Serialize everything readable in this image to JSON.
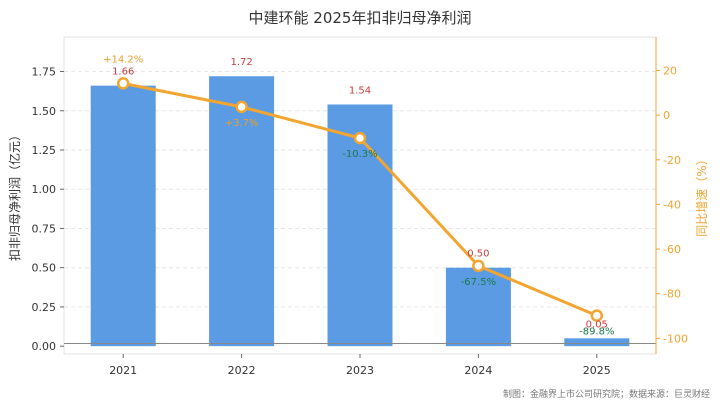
{
  "title": "中建环能 2025年扣非归母净利润",
  "footer": "制图：金融界上市公司研究院；数据来源：巨灵财经",
  "colors": {
    "bar": "#5b9be3",
    "line": "#f2a531",
    "bar_label": "#c83e3e",
    "growth_pos": "#e8a02e",
    "growth_neg": "#1b7a4a"
  },
  "chart_data": {
    "type": "bar",
    "categories": [
      "2021",
      "2022",
      "2023",
      "2024",
      "2025"
    ],
    "ylabel": "扣非归母净利润（亿元）",
    "ylabel_right": "同比增速（%）",
    "ylim": [
      -0.05,
      1.97
    ],
    "y2lim": [
      -107,
      35
    ],
    "yticks": [
      "0.00",
      "0.25",
      "0.50",
      "0.75",
      "1.00",
      "1.25",
      "1.50",
      "1.75"
    ],
    "y2ticks": [
      "-100",
      "-80",
      "-60",
      "-40",
      "-20",
      "0",
      "20"
    ],
    "grid": true,
    "series": [
      {
        "type": "bar",
        "axis": "left",
        "values": [
          1.66,
          1.72,
          1.54,
          0.5,
          0.05
        ],
        "labels": [
          "1.66",
          "1.72",
          "1.54",
          "0.50",
          "0.05"
        ]
      },
      {
        "type": "line",
        "axis": "right",
        "values": [
          14.2,
          3.7,
          -10.3,
          -67.5,
          -89.8
        ],
        "labels": [
          "+14.2%",
          "+3.7%",
          "-10.3%",
          "-67.5%",
          "-89.8%"
        ]
      }
    ]
  }
}
